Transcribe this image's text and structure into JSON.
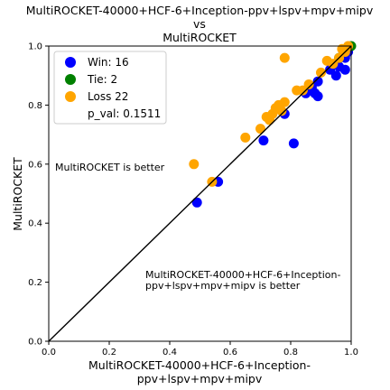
{
  "chart_data": {
    "type": "scatter",
    "title": [
      "MultiROCKET-40000+HCF-6+Inception-ppv+lspv+mpv+mipv",
      "vs",
      "MultiROCKET"
    ],
    "xlabel": [
      "MultiROCKET-40000+HCF-6+Inception-",
      "ppv+lspv+mpv+mipv"
    ],
    "ylabel": "MultiROCKET",
    "xlim": [
      0.0,
      1.0
    ],
    "ylim": [
      0.0,
      1.0
    ],
    "xticks": [
      "0.0",
      "0.2",
      "0.4",
      "0.6",
      "0.8",
      "1.0"
    ],
    "yticks": [
      "0.0",
      "0.2",
      "0.4",
      "0.6",
      "0.8",
      "1.0"
    ],
    "grid": false,
    "legend_position": "top-left",
    "legend": [
      "Win: 16",
      "Tie: 2",
      "Loss 22",
      "p_val: 0.1511"
    ],
    "annotations": [
      [
        "MultiROCKET is better"
      ],
      [
        "MultiROCKET-40000+HCF-6+Inception-",
        "ppv+lspv+mpv+mipv is better"
      ]
    ],
    "series": [
      {
        "name": "Win: 16",
        "color": "#0000ff",
        "points": [
          [
            0.49,
            0.47
          ],
          [
            0.56,
            0.54
          ],
          [
            0.71,
            0.68
          ],
          [
            0.78,
            0.77
          ],
          [
            0.81,
            0.67
          ],
          [
            0.85,
            0.84
          ],
          [
            0.87,
            0.86
          ],
          [
            0.88,
            0.84
          ],
          [
            0.89,
            0.83
          ],
          [
            0.89,
            0.88
          ],
          [
            0.93,
            0.92
          ],
          [
            0.95,
            0.9
          ],
          [
            0.96,
            0.93
          ],
          [
            0.98,
            0.92
          ],
          [
            0.98,
            0.96
          ],
          [
            0.99,
            0.98
          ]
        ]
      },
      {
        "name": "Tie: 2",
        "color": "#008000",
        "points": [
          [
            0.96,
            0.96
          ],
          [
            1.0,
            1.0
          ]
        ]
      },
      {
        "name": "Loss 22",
        "color": "#ffa500",
        "points": [
          [
            0.48,
            0.6
          ],
          [
            0.54,
            0.54
          ],
          [
            0.65,
            0.69
          ],
          [
            0.7,
            0.72
          ],
          [
            0.72,
            0.76
          ],
          [
            0.73,
            0.75
          ],
          [
            0.74,
            0.77
          ],
          [
            0.75,
            0.79
          ],
          [
            0.76,
            0.8
          ],
          [
            0.77,
            0.78
          ],
          [
            0.78,
            0.81
          ],
          [
            0.78,
            0.96
          ],
          [
            0.82,
            0.85
          ],
          [
            0.84,
            0.85
          ],
          [
            0.86,
            0.87
          ],
          [
            0.9,
            0.91
          ],
          [
            0.92,
            0.95
          ],
          [
            0.94,
            0.94
          ],
          [
            0.96,
            0.96
          ],
          [
            0.97,
            0.99
          ],
          [
            0.98,
            0.98
          ],
          [
            0.99,
            1.0
          ]
        ]
      }
    ]
  }
}
